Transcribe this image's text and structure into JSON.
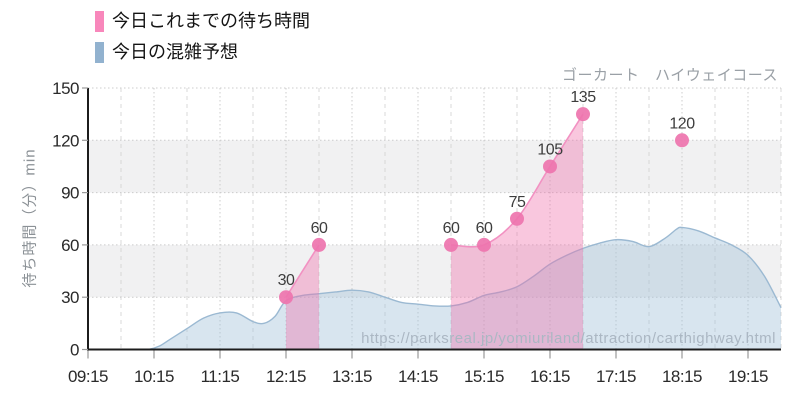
{
  "title": "ゴーカート　ハイウェイコース",
  "watermark": "https://parksreal.jp/yomiuriland/attraction/carthighway.html",
  "legend": {
    "actual": {
      "label": "今日これまでの待ち時間",
      "color": "#f887bb"
    },
    "forecast": {
      "label": "今日の混雑予想",
      "color": "#92b2cf"
    }
  },
  "chart_data": {
    "type": "area",
    "title": "ゴーカート　ハイウェイコース",
    "xlabel": "",
    "ylabel": "待ち時間（分）min",
    "ylim": [
      0,
      150
    ],
    "yticks": [
      0,
      30,
      60,
      90,
      120,
      150
    ],
    "xticks": [
      "09:15",
      "10:15",
      "11:15",
      "12:15",
      "13:15",
      "14:15",
      "15:15",
      "16:15",
      "17:15",
      "18:15",
      "19:15"
    ],
    "x_start": "09:15",
    "x_end": "19:45",
    "grid": "dotted, every 30 min vertical; gray bands 30-60 and 90-120",
    "legend_position": "top-left",
    "series": [
      {
        "name": "今日これまでの待ち時間",
        "type": "line-scatter-filled",
        "marker_color": "#ee74ae",
        "line_color": "#f291c2",
        "fill_color": "#f06ba8",
        "fill_opacity": 0.38,
        "segments": [
          [
            {
              "time": "12:15",
              "value": 30
            },
            {
              "time": "12:45",
              "value": 60
            }
          ],
          [
            {
              "time": "14:45",
              "value": 60
            },
            {
              "time": "15:15",
              "value": 60
            },
            {
              "time": "15:45",
              "value": 75
            },
            {
              "time": "16:15",
              "value": 105
            },
            {
              "time": "16:45",
              "value": 135
            }
          ]
        ],
        "isolated_points": [
          {
            "time": "18:15",
            "value": 120
          }
        ]
      },
      {
        "name": "今日の混雑予想",
        "type": "area",
        "line_color": "#9bb9d2",
        "fill_color": "#a3c1d8",
        "fill_opacity": 0.42,
        "points": [
          {
            "time": "09:15",
            "value": 0
          },
          {
            "time": "09:30",
            "value": 0
          },
          {
            "time": "09:45",
            "value": 0
          },
          {
            "time": "10:00",
            "value": 0
          },
          {
            "time": "10:10",
            "value": 0
          },
          {
            "time": "10:20",
            "value": 2
          },
          {
            "time": "10:30",
            "value": 6
          },
          {
            "time": "10:45",
            "value": 12
          },
          {
            "time": "11:00",
            "value": 18
          },
          {
            "time": "11:15",
            "value": 21
          },
          {
            "time": "11:30",
            "value": 21
          },
          {
            "time": "11:45",
            "value": 16
          },
          {
            "time": "11:55",
            "value": 15
          },
          {
            "time": "12:05",
            "value": 19
          },
          {
            "time": "12:15",
            "value": 28
          },
          {
            "time": "12:30",
            "value": 31
          },
          {
            "time": "12:45",
            "value": 32
          },
          {
            "time": "13:00",
            "value": 33
          },
          {
            "time": "13:15",
            "value": 34
          },
          {
            "time": "13:30",
            "value": 33
          },
          {
            "time": "13:45",
            "value": 30
          },
          {
            "time": "14:00",
            "value": 27
          },
          {
            "time": "14:15",
            "value": 26
          },
          {
            "time": "14:30",
            "value": 25
          },
          {
            "time": "14:45",
            "value": 25
          },
          {
            "time": "15:00",
            "value": 27
          },
          {
            "time": "15:15",
            "value": 31
          },
          {
            "time": "15:30",
            "value": 33
          },
          {
            "time": "15:45",
            "value": 36
          },
          {
            "time": "16:00",
            "value": 42
          },
          {
            "time": "16:15",
            "value": 49
          },
          {
            "time": "16:30",
            "value": 54
          },
          {
            "time": "16:45",
            "value": 58
          },
          {
            "time": "17:00",
            "value": 61
          },
          {
            "time": "17:15",
            "value": 63
          },
          {
            "time": "17:30",
            "value": 62
          },
          {
            "time": "17:45",
            "value": 59
          },
          {
            "time": "18:00",
            "value": 64
          },
          {
            "time": "18:10",
            "value": 69
          },
          {
            "time": "18:15",
            "value": 70
          },
          {
            "time": "18:30",
            "value": 68
          },
          {
            "time": "18:45",
            "value": 64
          },
          {
            "time": "19:00",
            "value": 60
          },
          {
            "time": "19:15",
            "value": 54
          },
          {
            "time": "19:30",
            "value": 42
          },
          {
            "time": "19:45",
            "value": 24
          }
        ]
      }
    ],
    "style": {
      "band_color": "#f1f1f2",
      "grid_color": "#cccccc",
      "axis_color": "#1c1c1c",
      "tick_color": "#9a9a9a"
    }
  }
}
